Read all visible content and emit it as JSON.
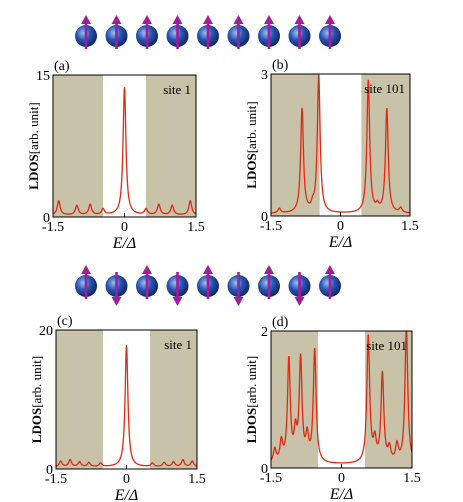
{
  "colors": {
    "gap_shade": "#c8c2a8",
    "curve": "#e02a12",
    "spin_arrow": "#a21c9c",
    "atom_dark": "#0e1f5c",
    "atom_mid": "#2a56b4",
    "atom_light": "#9cc0f0"
  },
  "spin_rows": [
    {
      "spins": [
        "up",
        "up",
        "up",
        "up",
        "up",
        "up",
        "up",
        "up",
        "up"
      ]
    },
    {
      "spins": [
        "up",
        "down",
        "up",
        "down",
        "up",
        "down",
        "up",
        "down",
        "up"
      ]
    }
  ],
  "chart_data": [
    {
      "type": "line",
      "panel_label": "(a)",
      "site_label": "site 1",
      "ylabel_bold": "LDOS",
      "ylabel_rest": "[arb. unit]",
      "xlabel": "E/Δ",
      "xlim": [
        -1.5,
        1.5
      ],
      "ylim": [
        0,
        15
      ],
      "xticks": [
        -1.5,
        0,
        1.5
      ],
      "xtick_labels": [
        "-1.5",
        "0",
        "1.5"
      ],
      "yticks": [
        0,
        15
      ],
      "ytick_labels": [
        "0",
        "15"
      ],
      "shaded_regions": [
        [
          -1.5,
          -0.45
        ],
        [
          0.45,
          1.5
        ]
      ],
      "curve": {
        "baseline": 0.2,
        "peaks": [
          [
            -1.38,
            1.5
          ],
          [
            -1.0,
            1.0
          ],
          [
            -0.72,
            1.1
          ],
          [
            -0.45,
            0.6
          ],
          [
            0.0,
            13.5
          ],
          [
            0.45,
            0.6
          ],
          [
            0.72,
            1.1
          ],
          [
            1.0,
            1.0
          ],
          [
            1.38,
            1.5
          ]
        ]
      }
    },
    {
      "type": "line",
      "panel_label": "(b)",
      "site_label": "site 101",
      "ylabel_bold": "LDOS",
      "ylabel_rest": "[arb. unit]",
      "xlabel": "E/Δ",
      "xlim": [
        -1.5,
        1.5
      ],
      "ylim": [
        0,
        3
      ],
      "xticks": [
        -1.5,
        0,
        1.5
      ],
      "xtick_labels": [
        "-1.5",
        "0",
        "1.5"
      ],
      "yticks": [
        0,
        3
      ],
      "ytick_labels": [
        "0",
        "3"
      ],
      "shaded_regions": [
        [
          -1.5,
          -0.45
        ],
        [
          0.45,
          1.5
        ]
      ],
      "curve": {
        "baseline": 0.05,
        "peaks": [
          [
            -1.32,
            0.1
          ],
          [
            -0.83,
            2.2
          ],
          [
            -0.6,
            0.12
          ],
          [
            -0.47,
            2.9
          ],
          [
            0.6,
            2.8
          ],
          [
            0.8,
            0.12
          ],
          [
            1.0,
            2.2
          ],
          [
            1.3,
            0.1
          ]
        ]
      }
    },
    {
      "type": "line",
      "panel_label": "(c)",
      "site_label": "site 1",
      "ylabel_bold": "LDOS",
      "ylabel_rest": "[arb. unit]",
      "xlabel": "E/Δ",
      "xlim": [
        -1.5,
        1.5
      ],
      "ylim": [
        0,
        20
      ],
      "xticks": [
        -1.5,
        0,
        1.5
      ],
      "xtick_labels": [
        "-1.5",
        "0",
        "1.5"
      ],
      "yticks": [
        0,
        20
      ],
      "ytick_labels": [
        "0",
        "20"
      ],
      "shaded_regions": [
        [
          -1.5,
          -0.5
        ],
        [
          0.5,
          1.5
        ]
      ],
      "curve": {
        "baseline": 0.3,
        "peaks": [
          [
            -1.4,
            0.8
          ],
          [
            -1.2,
            1.0
          ],
          [
            -1.0,
            0.7
          ],
          [
            -0.8,
            0.6
          ],
          [
            -0.55,
            0.5
          ],
          [
            0.0,
            17.5
          ],
          [
            0.55,
            0.5
          ],
          [
            0.8,
            0.6
          ],
          [
            1.0,
            0.7
          ],
          [
            1.2,
            1.0
          ],
          [
            1.4,
            0.8
          ]
        ]
      }
    },
    {
      "type": "line",
      "panel_label": "(d)",
      "site_label": "site 101",
      "ylabel_bold": "LDOS",
      "ylabel_rest": "[arb. unit]",
      "xlabel": "E/Δ",
      "xlim": [
        -1.5,
        1.5
      ],
      "ylim": [
        0,
        2
      ],
      "xticks": [
        -1.5,
        0,
        1.5
      ],
      "xtick_labels": [
        "-1.5",
        "0",
        "1.5"
      ],
      "yticks": [
        0,
        2
      ],
      "ytick_labels": [
        "0",
        "2"
      ],
      "shaded_regions": [
        [
          -1.5,
          -0.5
        ],
        [
          0.5,
          1.5
        ]
      ],
      "curve": {
        "baseline": 0.05,
        "peaks": [
          [
            -1.42,
            0.2
          ],
          [
            -1.28,
            0.3
          ],
          [
            -1.12,
            1.5
          ],
          [
            -0.98,
            0.4
          ],
          [
            -0.87,
            1.5
          ],
          [
            -0.73,
            0.35
          ],
          [
            -0.57,
            1.65
          ],
          [
            0.57,
            1.85
          ],
          [
            0.71,
            0.3
          ],
          [
            0.87,
            1.3
          ],
          [
            1.02,
            0.2
          ],
          [
            1.18,
            0.25
          ],
          [
            1.38,
            2.0
          ]
        ]
      }
    }
  ]
}
